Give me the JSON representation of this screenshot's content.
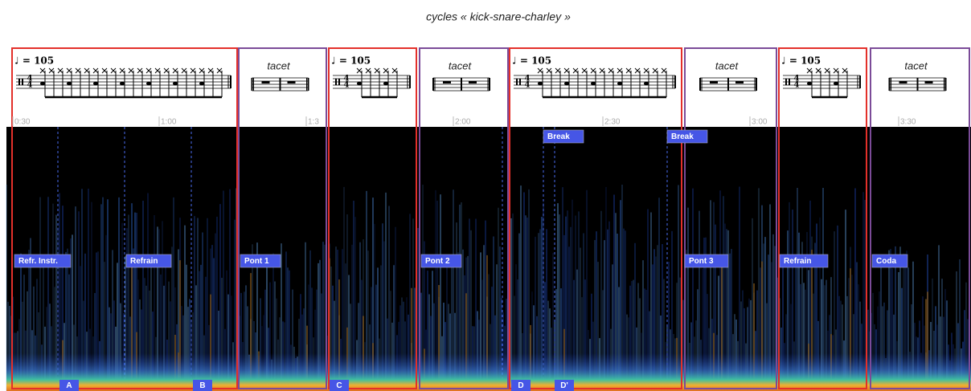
{
  "title": "cycles « kick-snare-charley »",
  "panels": [
    {
      "label": "♩ = 105",
      "meter": [
        "4",
        "4"
      ],
      "color": "#e3302a"
    },
    {
      "label": "tacet",
      "color": "#7b4b98"
    },
    {
      "label": "♩ = 105",
      "meter": [
        "4",
        "4"
      ],
      "color": "#e3302a"
    },
    {
      "label": "tacet",
      "color": "#7b4b98"
    },
    {
      "label": "♩ = 105",
      "meter": [
        "4",
        "4"
      ],
      "color": "#e3302a"
    },
    {
      "label": "tacet",
      "color": "#7b4b98"
    },
    {
      "label": "♩ = 105",
      "meter": [
        "4",
        "4"
      ],
      "color": "#e3302a"
    },
    {
      "label": "tacet",
      "color": "#7b4b98"
    }
  ],
  "time_labels": [
    "0:30",
    "1:00",
    "1:3",
    "2:00",
    "2:30",
    "3:00",
    "3:30"
  ],
  "sections": [
    "Refr. Instr.",
    "Refrain",
    "Pont 1",
    "Pont 2",
    "Break",
    "Break",
    "Pont 3",
    "Refrain",
    "Coda"
  ],
  "markers": [
    "A",
    "B",
    "C",
    "D",
    "D'"
  ]
}
